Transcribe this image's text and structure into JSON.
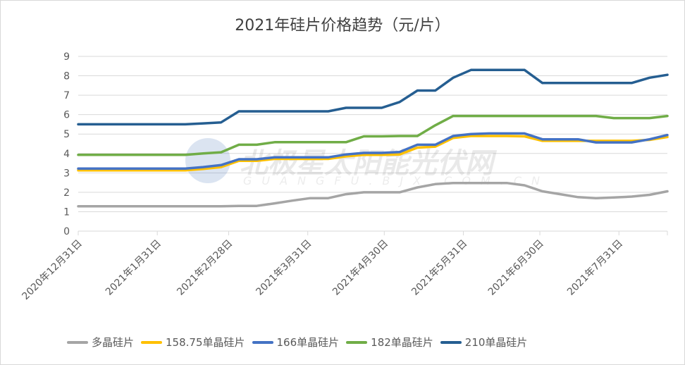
{
  "chart_data": {
    "type": "line",
    "title": "2021年硅片价格趋势（元/片）",
    "xlabel": "",
    "ylabel": "",
    "ylim": [
      0,
      9
    ],
    "yticks": [
      0,
      1,
      2,
      3,
      4,
      5,
      6,
      7,
      8,
      9
    ],
    "grid": true,
    "legend_position": "bottom",
    "x_range": [
      "2020-12-31",
      "2021-08-19"
    ],
    "xticks": [
      {
        "date": "2020-12-31",
        "label": "2020年12月31日"
      },
      {
        "date": "2021-01-31",
        "label": "2021年1月31日"
      },
      {
        "date": "2021-02-28",
        "label": "2021年2月28日"
      },
      {
        "date": "2021-03-31",
        "label": "2021年3月31日"
      },
      {
        "date": "2021-04-30",
        "label": "2021年4月30日"
      },
      {
        "date": "2021-05-31",
        "label": "2021年5月31日"
      },
      {
        "date": "2021-06-30",
        "label": "2021年6月30日"
      },
      {
        "date": "2021-07-31",
        "label": "2021年7月31日"
      }
    ],
    "x": [
      "2020-12-31",
      "2021-01-07",
      "2021-01-14",
      "2021-01-21",
      "2021-01-28",
      "2021-02-04",
      "2021-02-11",
      "2021-02-18",
      "2021-02-25",
      "2021-03-04",
      "2021-03-11",
      "2021-03-18",
      "2021-03-25",
      "2021-04-01",
      "2021-04-08",
      "2021-04-15",
      "2021-04-22",
      "2021-04-29",
      "2021-05-06",
      "2021-05-13",
      "2021-05-20",
      "2021-05-27",
      "2021-06-03",
      "2021-06-10",
      "2021-06-17",
      "2021-06-24",
      "2021-07-01",
      "2021-07-08",
      "2021-07-15",
      "2021-07-22",
      "2021-07-29",
      "2021-08-05",
      "2021-08-12",
      "2021-08-19"
    ],
    "series": [
      {
        "name": "多晶硅片",
        "color": "#a5a5a5",
        "values": [
          1.28,
          1.28,
          1.28,
          1.28,
          1.28,
          1.28,
          1.28,
          1.28,
          1.28,
          1.3,
          1.3,
          1.43,
          1.57,
          1.7,
          1.7,
          1.9,
          2.0,
          2.0,
          2.0,
          2.25,
          2.42,
          2.48,
          2.48,
          2.48,
          2.48,
          2.36,
          2.05,
          1.9,
          1.75,
          1.7,
          1.73,
          1.78,
          1.87,
          2.05
        ]
      },
      {
        "name": "158.75单晶硅片",
        "color": "#ffc000",
        "values": [
          3.13,
          3.13,
          3.13,
          3.13,
          3.13,
          3.13,
          3.13,
          3.2,
          3.3,
          3.62,
          3.62,
          3.72,
          3.72,
          3.72,
          3.72,
          3.85,
          3.93,
          3.93,
          3.95,
          4.3,
          4.35,
          4.8,
          4.9,
          4.9,
          4.9,
          4.88,
          4.65,
          4.65,
          4.65,
          4.65,
          4.65,
          4.65,
          4.7,
          4.85
        ]
      },
      {
        "name": "166单晶硅片",
        "color": "#4472c4",
        "values": [
          3.22,
          3.22,
          3.22,
          3.22,
          3.22,
          3.22,
          3.22,
          3.3,
          3.4,
          3.7,
          3.7,
          3.8,
          3.8,
          3.8,
          3.8,
          3.95,
          4.03,
          4.03,
          4.07,
          4.45,
          4.45,
          4.9,
          5.0,
          5.03,
          5.03,
          5.03,
          4.73,
          4.73,
          4.73,
          4.57,
          4.57,
          4.57,
          4.73,
          4.95
        ]
      },
      {
        "name": "182单晶硅片",
        "color": "#70ad47",
        "values": [
          3.93,
          3.93,
          3.93,
          3.93,
          3.93,
          3.93,
          3.93,
          4.0,
          4.06,
          4.45,
          4.45,
          4.58,
          4.58,
          4.58,
          4.58,
          4.58,
          4.88,
          4.88,
          4.9,
          4.9,
          5.45,
          5.93,
          5.93,
          5.93,
          5.93,
          5.93,
          5.93,
          5.93,
          5.93,
          5.93,
          5.82,
          5.82,
          5.82,
          5.93
        ]
      },
      {
        "name": "210单晶硅片",
        "color": "#255e91",
        "values": [
          5.5,
          5.5,
          5.5,
          5.5,
          5.5,
          5.5,
          5.5,
          5.55,
          5.6,
          6.17,
          6.17,
          6.17,
          6.17,
          6.17,
          6.17,
          6.35,
          6.35,
          6.35,
          6.65,
          7.24,
          7.24,
          7.9,
          8.3,
          8.3,
          8.3,
          8.3,
          7.63,
          7.63,
          7.63,
          7.63,
          7.63,
          7.63,
          7.9,
          8.05
        ]
      }
    ]
  },
  "watermark": {
    "text": "北极星太阳能光伏网",
    "subtext": "GUANGFU.BJX.COM.CN"
  }
}
